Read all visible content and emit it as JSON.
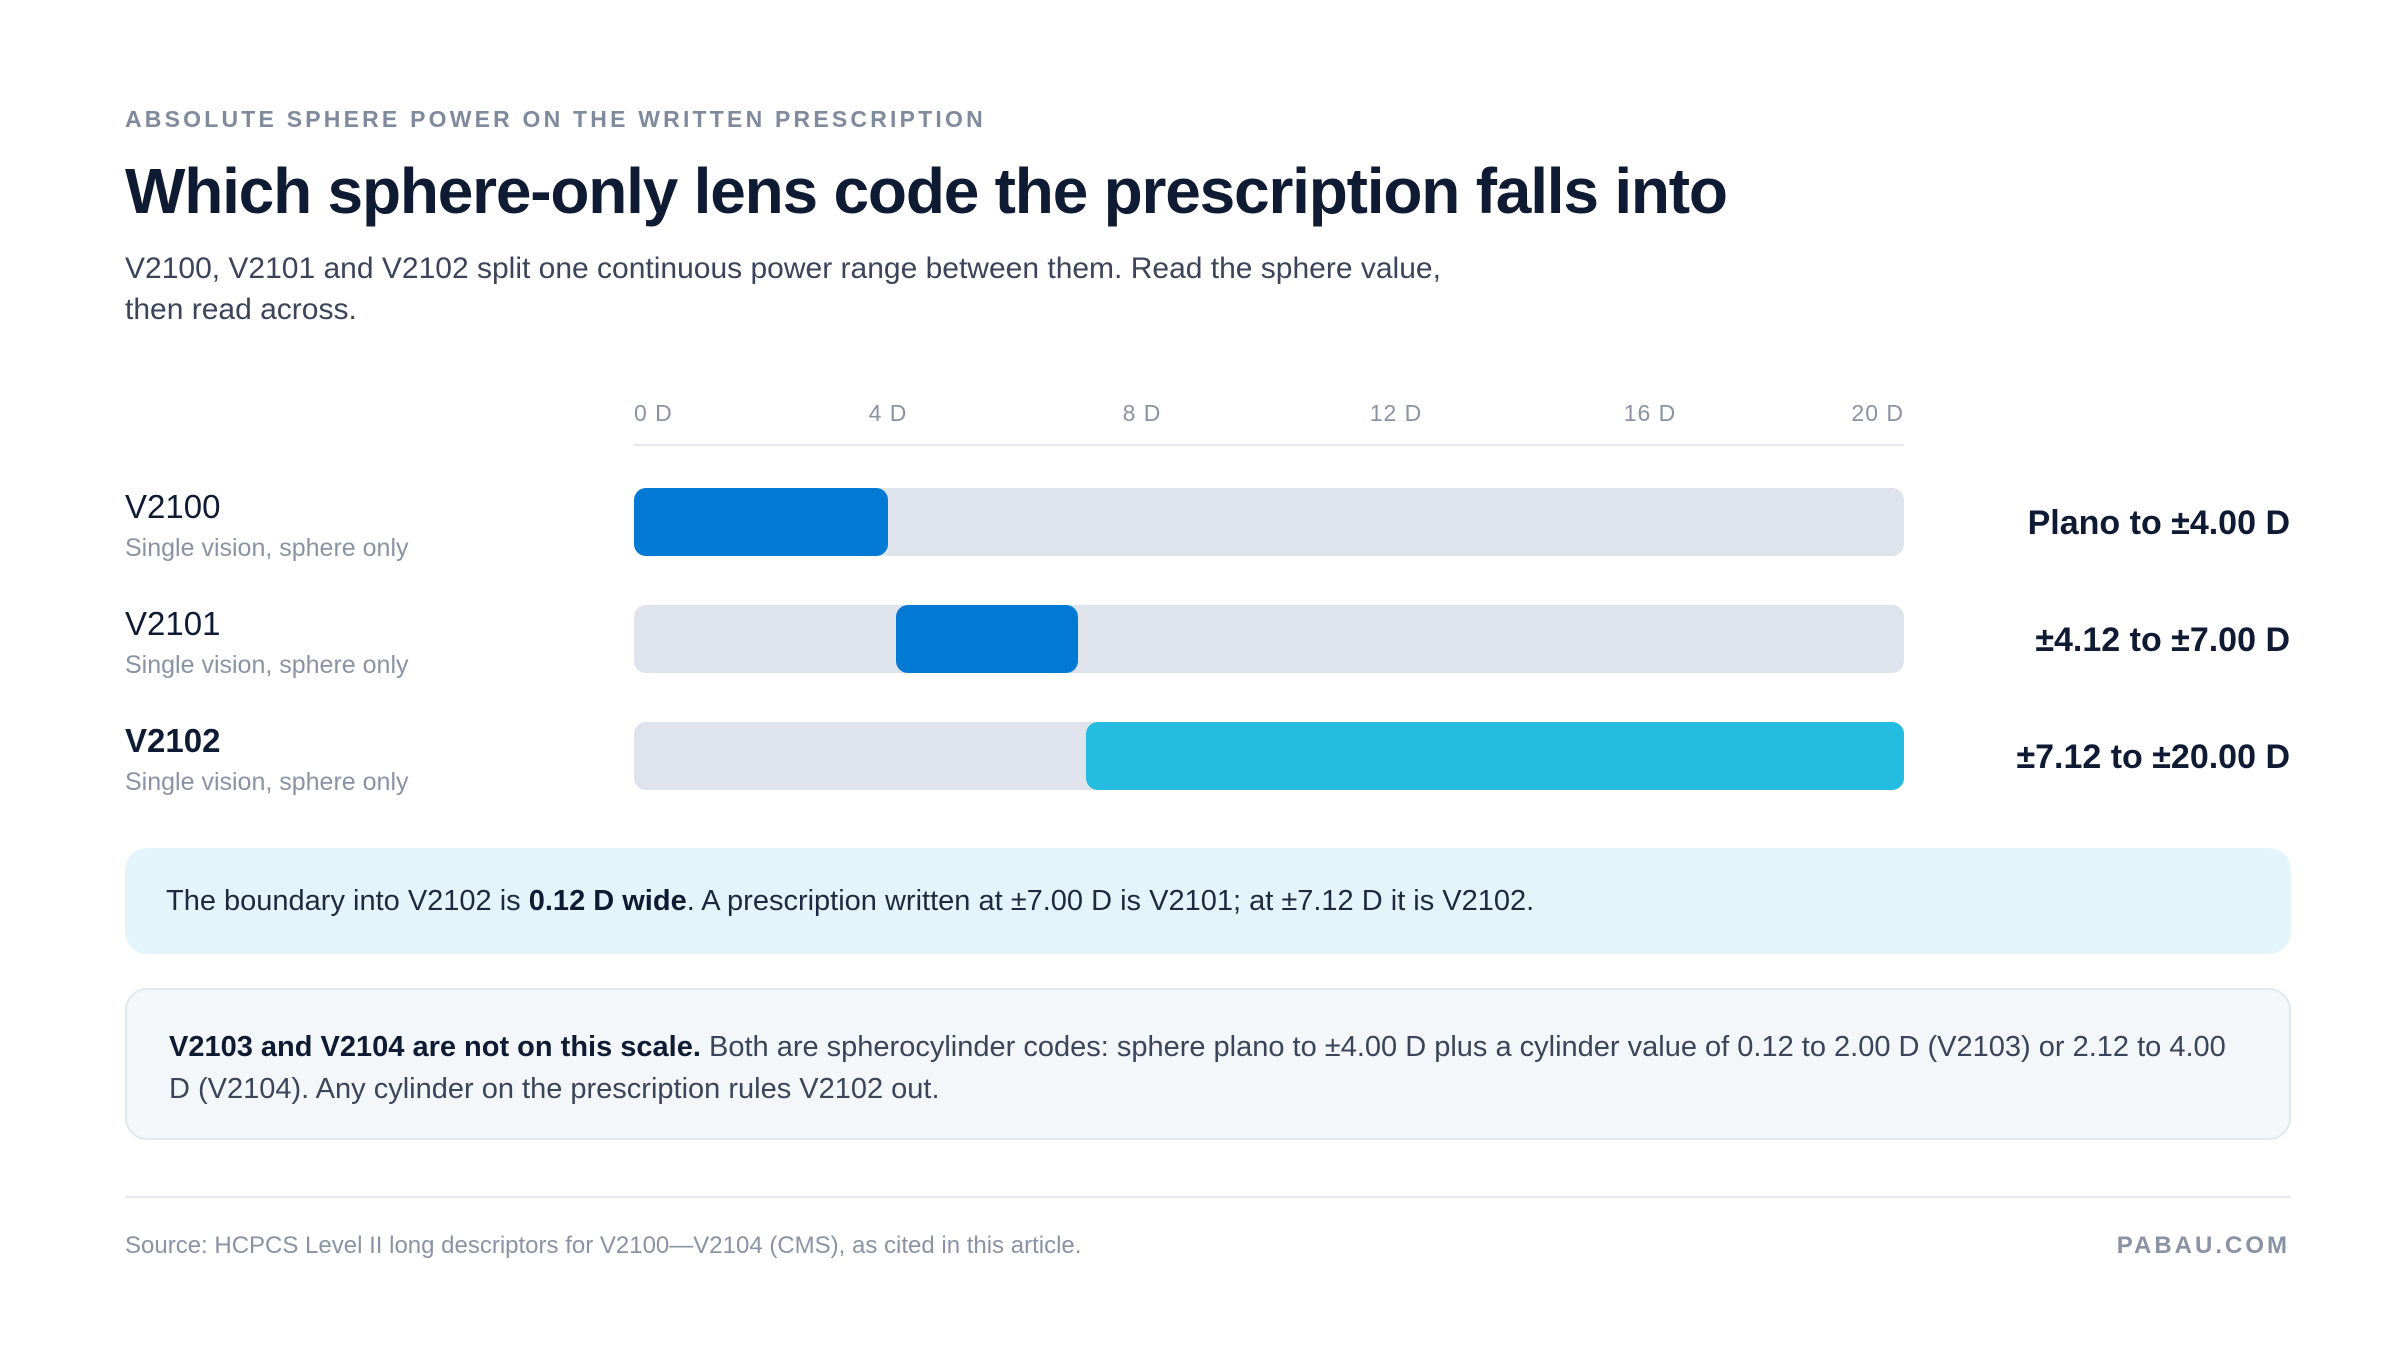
{
  "eyebrow": "ABSOLUTE SPHERE POWER ON THE WRITTEN PRESCRIPTION",
  "title": "Which sphere-only lens code the prescription falls into",
  "subtitle_line1": "V2100, V2101 and V2102 split one continuous power range between them. Read the sphere value,",
  "subtitle_line2": "then read across.",
  "colors": {
    "track": "#dfe3ec",
    "V2100": "#0279d3",
    "V2101": "#0279d3",
    "V2102": "#24bce0"
  },
  "chart_data": {
    "type": "bar",
    "orientation": "horizontal-range",
    "xlim": [
      0,
      20
    ],
    "ticks": [
      "0 D",
      "4 D",
      "8 D",
      "12 D",
      "16 D",
      "20 D"
    ],
    "tick_values": [
      0,
      4,
      8,
      12,
      16,
      20
    ],
    "series": [
      {
        "code": "V2100",
        "desc": "Single vision, sphere only",
        "start": 0,
        "end": 4.0,
        "range_label": "Plano to ±4.00 D"
      },
      {
        "code": "V2101",
        "desc": "Single vision, sphere only",
        "start": 4.12,
        "end": 7.0,
        "range_label": "±4.12 to ±7.00 D"
      },
      {
        "code": "V2102",
        "desc": "Single vision, sphere only",
        "start": 7.12,
        "end": 20.0,
        "range_label": "±7.12 to ±20.00 D"
      }
    ]
  },
  "note": {
    "pre": "The boundary into V2102 is ",
    "bold": "0.12 D wide",
    "post": ". A prescription written at ±7.00 D is V2101; at ±7.12 D it is V2102."
  },
  "callout": {
    "bold": "V2103 and V2104 are not on this scale.",
    "text": " Both are spherocylinder codes: sphere plano to ±4.00 D plus a cylinder value of 0.12 to 2.00 D (V2103) or 2.12 to 4.00 D (V2104). Any cylinder on the prescription rules V2102 out."
  },
  "footer": {
    "source": "Source: HCPCS Level II long descriptors for V2100—V2104 (CMS), as cited in this article.",
    "brand": "PABAU.COM"
  }
}
